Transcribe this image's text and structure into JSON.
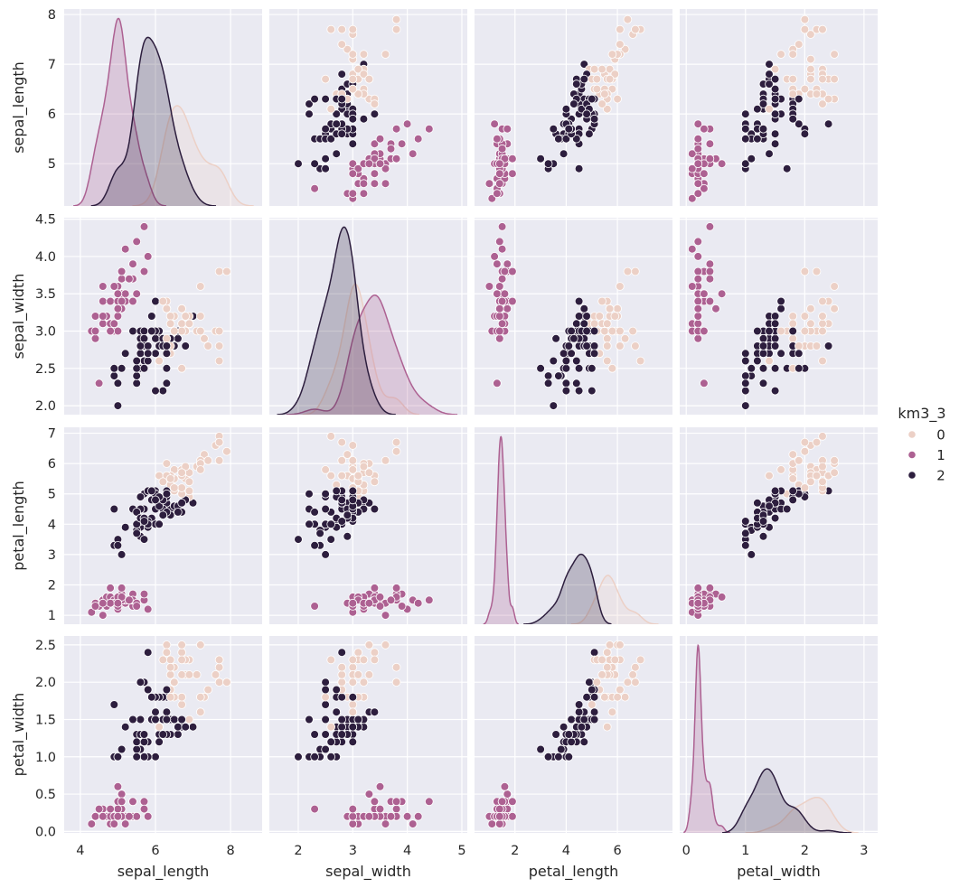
{
  "chart_data": {
    "type": "scatter",
    "layout": "pairplot",
    "diag_kind": "kde",
    "offdiag_kind": "scatter",
    "grid": true,
    "background": "#eaeaf2",
    "grid_color": "#ffffff",
    "variables": [
      "sepal_length",
      "sepal_width",
      "petal_length",
      "petal_width"
    ],
    "axes": {
      "sepal_length": {
        "x_range": [
          3.57,
          8.84
        ],
        "y_range": [
          4.15,
          8.11
        ],
        "x_ticks": [
          "4",
          "6",
          "8"
        ],
        "y_ticks": [
          "5",
          "6",
          "7",
          "8"
        ]
      },
      "sepal_width": {
        "x_range": [
          1.47,
          5.1
        ],
        "y_range": [
          1.88,
          4.52
        ],
        "x_ticks": [
          "2",
          "3",
          "4",
          "5"
        ],
        "y_ticks": [
          "2.0",
          "2.5",
          "3.0",
          "3.5",
          "4.0",
          "4.5"
        ]
      },
      "petal_length": {
        "x_range": [
          0.42,
          8.15
        ],
        "y_range": [
          0.705,
          7.195
        ],
        "x_ticks": [
          "2",
          "4",
          "6"
        ],
        "y_ticks": [
          "1",
          "2",
          "3",
          "4",
          "5",
          "6",
          "7"
        ]
      },
      "petal_width": {
        "x_range": [
          -0.11,
          3.23
        ],
        "y_range": [
          -0.02,
          2.62
        ],
        "x_ticks": [
          "0",
          "1",
          "2",
          "3"
        ],
        "y_ticks": [
          "0.0",
          "0.5",
          "1.0",
          "1.5",
          "2.0",
          "2.5"
        ]
      }
    },
    "legend": {
      "title": "km3_3",
      "placement": "right",
      "levels": [
        "0",
        "1",
        "2"
      ],
      "colors": [
        "#ecd0c6",
        "#ad6192",
        "#2d1e3e"
      ]
    },
    "columns": [
      "sepal_length",
      "sepal_width",
      "petal_length",
      "petal_width",
      "km3_3"
    ],
    "rows": [
      [
        5.1,
        3.5,
        1.4,
        0.2,
        1
      ],
      [
        4.9,
        3.0,
        1.4,
        0.2,
        1
      ],
      [
        4.7,
        3.2,
        1.3,
        0.2,
        1
      ],
      [
        4.6,
        3.1,
        1.5,
        0.2,
        1
      ],
      [
        5.0,
        3.6,
        1.4,
        0.2,
        1
      ],
      [
        5.4,
        3.9,
        1.7,
        0.4,
        1
      ],
      [
        4.6,
        3.4,
        1.4,
        0.3,
        1
      ],
      [
        5.0,
        3.4,
        1.5,
        0.2,
        1
      ],
      [
        4.4,
        2.9,
        1.4,
        0.2,
        1
      ],
      [
        4.9,
        3.1,
        1.5,
        0.1,
        1
      ],
      [
        5.4,
        3.7,
        1.5,
        0.2,
        1
      ],
      [
        4.8,
        3.4,
        1.6,
        0.2,
        1
      ],
      [
        4.8,
        3.0,
        1.4,
        0.1,
        1
      ],
      [
        4.3,
        3.0,
        1.1,
        0.1,
        1
      ],
      [
        5.8,
        4.0,
        1.2,
        0.2,
        1
      ],
      [
        5.7,
        4.4,
        1.5,
        0.4,
        1
      ],
      [
        5.4,
        3.9,
        1.3,
        0.4,
        1
      ],
      [
        5.1,
        3.5,
        1.4,
        0.3,
        1
      ],
      [
        5.7,
        3.8,
        1.7,
        0.3,
        1
      ],
      [
        5.1,
        3.8,
        1.5,
        0.3,
        1
      ],
      [
        5.4,
        3.4,
        1.7,
        0.2,
        1
      ],
      [
        5.1,
        3.7,
        1.5,
        0.4,
        1
      ],
      [
        4.6,
        3.6,
        1.0,
        0.2,
        1
      ],
      [
        5.1,
        3.3,
        1.7,
        0.5,
        1
      ],
      [
        4.8,
        3.4,
        1.9,
        0.2,
        1
      ],
      [
        5.0,
        3.0,
        1.6,
        0.2,
        1
      ],
      [
        5.0,
        3.4,
        1.6,
        0.4,
        1
      ],
      [
        5.2,
        3.5,
        1.5,
        0.2,
        1
      ],
      [
        5.2,
        3.4,
        1.4,
        0.2,
        1
      ],
      [
        4.7,
        3.2,
        1.6,
        0.2,
        1
      ],
      [
        4.8,
        3.1,
        1.6,
        0.2,
        1
      ],
      [
        5.4,
        3.4,
        1.5,
        0.4,
        1
      ],
      [
        5.2,
        4.1,
        1.5,
        0.1,
        1
      ],
      [
        5.5,
        4.2,
        1.4,
        0.2,
        1
      ],
      [
        4.9,
        3.1,
        1.5,
        0.2,
        1
      ],
      [
        5.0,
        3.2,
        1.2,
        0.2,
        1
      ],
      [
        5.5,
        3.5,
        1.3,
        0.2,
        1
      ],
      [
        4.9,
        3.6,
        1.4,
        0.1,
        1
      ],
      [
        4.4,
        3.0,
        1.3,
        0.2,
        1
      ],
      [
        5.1,
        3.4,
        1.5,
        0.2,
        1
      ],
      [
        5.0,
        3.5,
        1.3,
        0.3,
        1
      ],
      [
        4.5,
        2.3,
        1.3,
        0.3,
        1
      ],
      [
        4.4,
        3.2,
        1.3,
        0.2,
        1
      ],
      [
        5.0,
        3.5,
        1.6,
        0.6,
        1
      ],
      [
        5.1,
        3.8,
        1.9,
        0.4,
        1
      ],
      [
        4.8,
        3.0,
        1.4,
        0.3,
        1
      ],
      [
        5.1,
        3.8,
        1.6,
        0.2,
        1
      ],
      [
        4.6,
        3.2,
        1.4,
        0.2,
        1
      ],
      [
        5.3,
        3.7,
        1.5,
        0.2,
        1
      ],
      [
        5.0,
        3.3,
        1.4,
        0.2,
        1
      ],
      [
        7.0,
        3.2,
        4.7,
        1.4,
        2
      ],
      [
        6.4,
        3.2,
        4.5,
        1.5,
        2
      ],
      [
        6.9,
        3.1,
        4.9,
        1.5,
        0
      ],
      [
        5.5,
        2.3,
        4.0,
        1.3,
        2
      ],
      [
        6.5,
        2.8,
        4.6,
        1.5,
        2
      ],
      [
        5.7,
        2.8,
        4.5,
        1.3,
        2
      ],
      [
        6.3,
        3.3,
        4.7,
        1.6,
        2
      ],
      [
        4.9,
        2.4,
        3.3,
        1.0,
        2
      ],
      [
        6.6,
        2.9,
        4.6,
        1.3,
        2
      ],
      [
        5.2,
        2.7,
        3.9,
        1.4,
        2
      ],
      [
        5.0,
        2.0,
        3.5,
        1.0,
        2
      ],
      [
        5.9,
        3.0,
        4.2,
        1.5,
        2
      ],
      [
        6.0,
        2.2,
        4.0,
        1.0,
        2
      ],
      [
        6.1,
        2.9,
        4.7,
        1.4,
        2
      ],
      [
        5.6,
        2.9,
        3.6,
        1.3,
        2
      ],
      [
        6.7,
        3.1,
        4.4,
        1.4,
        2
      ],
      [
        5.6,
        3.0,
        4.5,
        1.5,
        2
      ],
      [
        5.8,
        2.7,
        4.1,
        1.0,
        2
      ],
      [
        6.2,
        2.2,
        4.5,
        1.5,
        2
      ],
      [
        5.6,
        2.5,
        3.9,
        1.1,
        2
      ],
      [
        5.9,
        3.2,
        4.8,
        1.8,
        2
      ],
      [
        6.1,
        2.8,
        4.0,
        1.3,
        2
      ],
      [
        6.3,
        2.5,
        4.9,
        1.5,
        2
      ],
      [
        6.1,
        2.8,
        4.7,
        1.2,
        2
      ],
      [
        6.4,
        2.9,
        4.3,
        1.3,
        2
      ],
      [
        6.6,
        3.0,
        4.4,
        1.4,
        2
      ],
      [
        6.8,
        2.8,
        4.8,
        1.4,
        2
      ],
      [
        6.7,
        3.0,
        5.0,
        1.7,
        0
      ],
      [
        6.0,
        2.9,
        4.5,
        1.5,
        2
      ],
      [
        5.7,
        2.6,
        3.5,
        1.0,
        2
      ],
      [
        5.5,
        2.4,
        3.8,
        1.1,
        2
      ],
      [
        5.5,
        2.4,
        3.7,
        1.0,
        2
      ],
      [
        5.8,
        2.7,
        3.9,
        1.2,
        2
      ],
      [
        6.0,
        2.7,
        5.1,
        1.6,
        2
      ],
      [
        5.4,
        3.0,
        4.5,
        1.5,
        2
      ],
      [
        6.0,
        3.4,
        4.5,
        1.6,
        2
      ],
      [
        6.7,
        3.1,
        4.7,
        1.5,
        2
      ],
      [
        6.3,
        2.3,
        4.4,
        1.3,
        2
      ],
      [
        5.6,
        3.0,
        4.1,
        1.3,
        2
      ],
      [
        5.5,
        2.5,
        4.0,
        1.3,
        2
      ],
      [
        5.5,
        2.6,
        4.4,
        1.2,
        2
      ],
      [
        6.1,
        3.0,
        4.6,
        1.4,
        2
      ],
      [
        5.8,
        2.6,
        4.0,
        1.2,
        2
      ],
      [
        5.0,
        2.3,
        3.3,
        1.0,
        2
      ],
      [
        5.6,
        2.7,
        4.2,
        1.3,
        2
      ],
      [
        5.7,
        3.0,
        4.2,
        1.2,
        2
      ],
      [
        5.7,
        2.9,
        4.2,
        1.3,
        2
      ],
      [
        6.2,
        2.9,
        4.3,
        1.3,
        2
      ],
      [
        5.1,
        2.5,
        3.0,
        1.1,
        2
      ],
      [
        5.7,
        2.8,
        4.1,
        1.3,
        2
      ],
      [
        6.3,
        3.3,
        6.0,
        2.5,
        0
      ],
      [
        5.8,
        2.7,
        5.1,
        1.9,
        2
      ],
      [
        7.1,
        3.0,
        5.9,
        2.1,
        0
      ],
      [
        6.3,
        2.9,
        5.6,
        1.8,
        0
      ],
      [
        6.5,
        3.0,
        5.8,
        2.2,
        0
      ],
      [
        7.6,
        3.0,
        6.6,
        2.1,
        0
      ],
      [
        4.9,
        2.5,
        4.5,
        1.7,
        2
      ],
      [
        7.3,
        2.9,
        6.3,
        1.8,
        0
      ],
      [
        6.7,
        2.5,
        5.8,
        1.8,
        0
      ],
      [
        7.2,
        3.6,
        6.1,
        2.5,
        0
      ],
      [
        6.5,
        3.2,
        5.1,
        2.0,
        0
      ],
      [
        6.4,
        2.7,
        5.3,
        1.9,
        0
      ],
      [
        6.8,
        3.0,
        5.5,
        2.1,
        0
      ],
      [
        5.7,
        2.5,
        5.0,
        2.0,
        2
      ],
      [
        5.8,
        2.8,
        5.1,
        2.4,
        2
      ],
      [
        6.4,
        3.2,
        5.3,
        2.3,
        0
      ],
      [
        6.5,
        3.0,
        5.5,
        1.8,
        0
      ],
      [
        7.7,
        3.8,
        6.7,
        2.2,
        0
      ],
      [
        7.7,
        2.6,
        6.9,
        2.3,
        0
      ],
      [
        6.0,
        2.2,
        5.0,
        1.5,
        2
      ],
      [
        6.9,
        3.2,
        5.7,
        2.3,
        0
      ],
      [
        5.6,
        2.8,
        4.9,
        2.0,
        2
      ],
      [
        7.7,
        2.8,
        6.7,
        2.0,
        0
      ],
      [
        6.3,
        2.7,
        4.9,
        1.8,
        2
      ],
      [
        6.7,
        3.3,
        5.7,
        2.1,
        0
      ],
      [
        7.2,
        3.2,
        6.0,
        1.8,
        0
      ],
      [
        6.2,
        2.8,
        4.8,
        1.8,
        2
      ],
      [
        6.1,
        3.0,
        4.9,
        1.8,
        2
      ],
      [
        6.4,
        2.8,
        5.6,
        2.1,
        0
      ],
      [
        7.2,
        3.0,
        5.8,
        1.6,
        0
      ],
      [
        7.4,
        2.8,
        6.1,
        1.9,
        0
      ],
      [
        7.9,
        3.8,
        6.4,
        2.0,
        0
      ],
      [
        6.4,
        2.8,
        5.6,
        2.2,
        0
      ],
      [
        6.3,
        2.8,
        5.1,
        1.5,
        2
      ],
      [
        6.1,
        2.6,
        5.6,
        1.4,
        0
      ],
      [
        7.7,
        3.0,
        6.1,
        2.3,
        0
      ],
      [
        6.3,
        3.4,
        5.6,
        2.4,
        0
      ],
      [
        6.4,
        3.1,
        5.5,
        1.8,
        0
      ],
      [
        6.0,
        3.0,
        4.8,
        1.8,
        2
      ],
      [
        6.9,
        3.1,
        5.4,
        2.1,
        0
      ],
      [
        6.7,
        3.1,
        5.6,
        2.4,
        0
      ],
      [
        6.9,
        3.1,
        5.1,
        2.3,
        0
      ],
      [
        5.8,
        2.7,
        5.1,
        1.9,
        2
      ],
      [
        6.8,
        3.2,
        5.9,
        2.3,
        0
      ],
      [
        6.7,
        3.3,
        5.7,
        2.5,
        0
      ],
      [
        6.7,
        3.0,
        5.2,
        2.3,
        0
      ],
      [
        6.3,
        2.5,
        5.0,
        1.9,
        2
      ],
      [
        6.5,
        3.0,
        5.2,
        2.0,
        0
      ],
      [
        6.2,
        3.4,
        5.4,
        2.3,
        0
      ],
      [
        5.9,
        3.0,
        5.1,
        1.8,
        2
      ]
    ]
  }
}
